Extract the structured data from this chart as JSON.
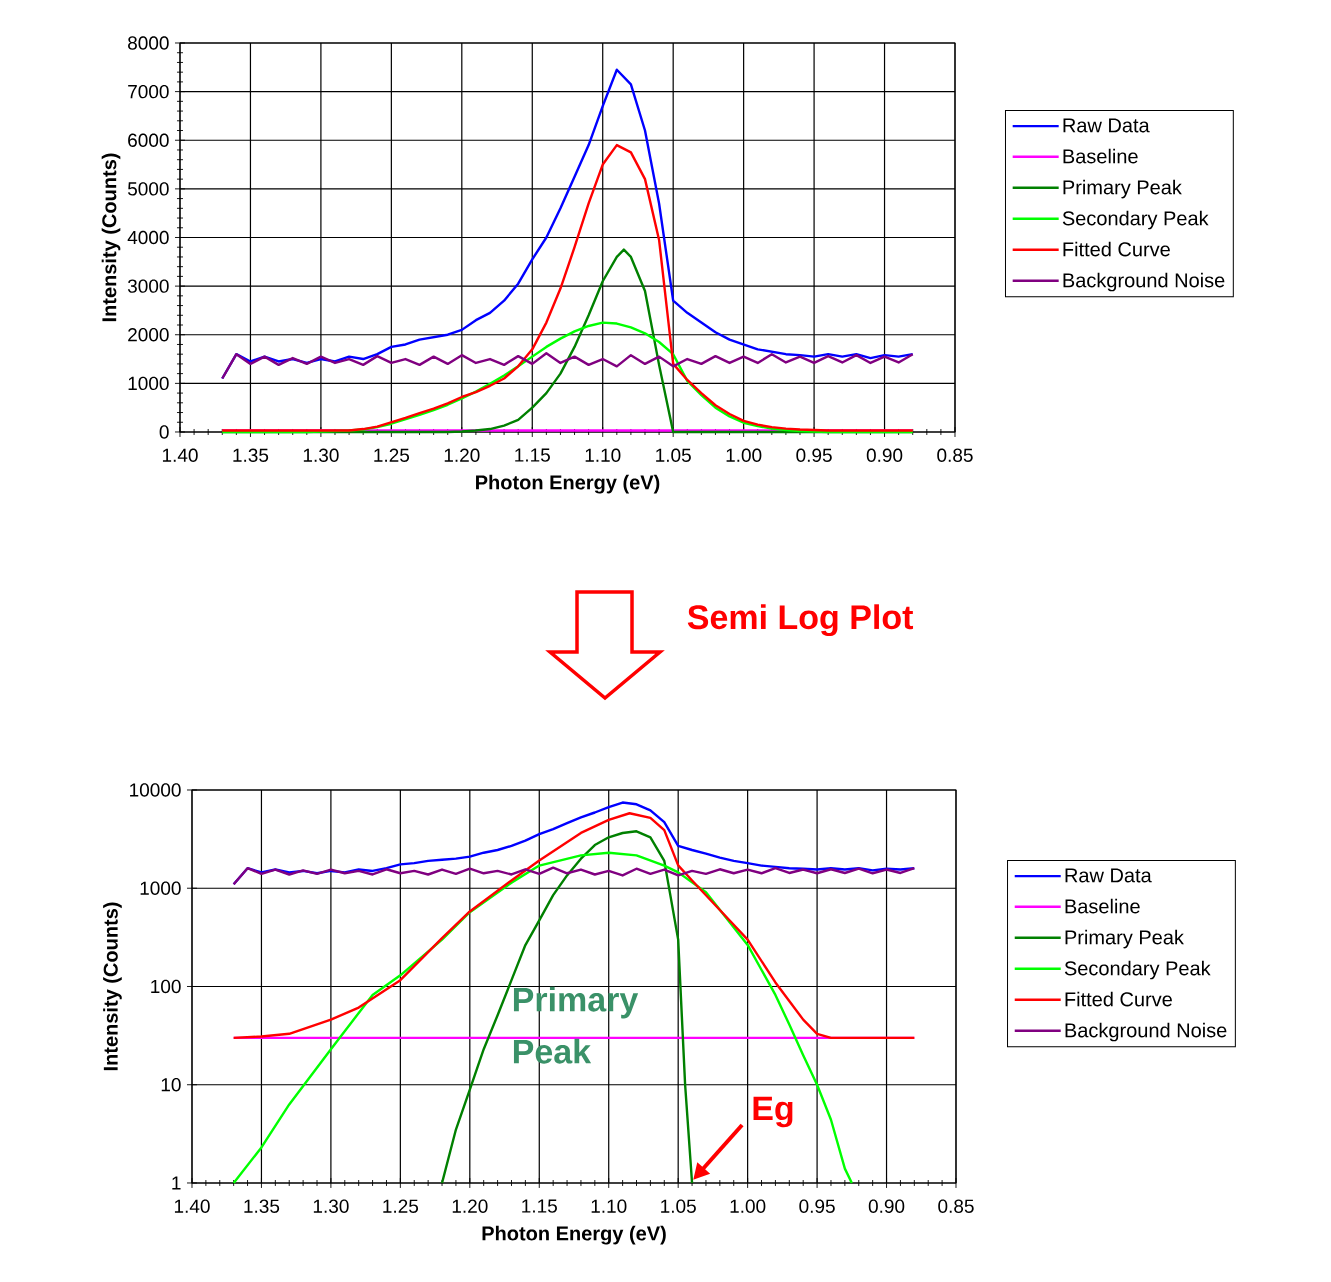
{
  "chart_data": [
    {
      "type": "line",
      "xlabel": "Photon Energy (eV)",
      "ylabel": "Intensity (Counts)",
      "x": [
        1.37,
        1.36,
        1.35,
        1.34,
        1.33,
        1.32,
        1.31,
        1.3,
        1.29,
        1.28,
        1.27,
        1.26,
        1.25,
        1.24,
        1.23,
        1.22,
        1.21,
        1.2,
        1.19,
        1.18,
        1.17,
        1.16,
        1.15,
        1.14,
        1.13,
        1.12,
        1.11,
        1.1,
        1.09,
        1.08,
        1.07,
        1.06,
        1.05,
        1.04,
        1.03,
        1.02,
        1.01,
        1.0,
        0.99,
        0.98,
        0.97,
        0.96,
        0.95,
        0.94,
        0.93,
        0.92,
        0.91,
        0.9,
        0.89,
        0.88
      ],
      "xlim": [
        1.4,
        0.85
      ],
      "ylim": [
        0,
        8000
      ],
      "xticks": [
        {
          "value": 1.4,
          "label": "1.40"
        },
        1.35,
        {
          "value": 1.3,
          "label": "1.30"
        },
        1.25,
        {
          "value": 1.2,
          "label": "1.20"
        },
        1.15,
        {
          "value": 1.1,
          "label": "1.10"
        },
        1.05,
        {
          "value": 1.0,
          "label": "1.00"
        },
        0.95,
        {
          "value": 0.9,
          "label": "0.90"
        },
        0.85
      ],
      "yticks": [
        0,
        1000,
        2000,
        3000,
        4000,
        5000,
        6000,
        7000,
        8000
      ],
      "grid": true,
      "legend": "right",
      "series": [
        {
          "name": "Raw Data",
          "color": "#0000ff",
          "values": [
            1100,
            1600,
            1450,
            1550,
            1450,
            1500,
            1420,
            1500,
            1450,
            1550,
            1500,
            1600,
            1750,
            1800,
            1900,
            1950,
            2000,
            2100,
            2300,
            2450,
            2700,
            3050,
            3550,
            4000,
            4600,
            5250,
            5900,
            6700,
            7450,
            7150,
            6200,
            4700,
            2700,
            2450,
            2250,
            2050,
            1900,
            1800,
            1700,
            1650,
            1600,
            1580,
            1550,
            1600,
            1550,
            1600,
            1520,
            1580,
            1550,
            1600
          ]
        },
        {
          "name": "Baseline",
          "color": "#ff00ff",
          "x": [
            1.37,
            0.88
          ],
          "values": [
            30,
            30
          ]
        },
        {
          "name": "Primary Peak",
          "color": "#008000",
          "x": [
            1.37,
            1.21,
            1.2,
            1.19,
            1.18,
            1.17,
            1.16,
            1.15,
            1.14,
            1.13,
            1.12,
            1.11,
            1.1,
            1.09,
            1.085,
            1.08,
            1.07,
            1.06,
            1.05,
            0.88
          ],
          "values": [
            0,
            0,
            10,
            30,
            60,
            130,
            250,
            500,
            800,
            1200,
            1750,
            2400,
            3100,
            3600,
            3750,
            3600,
            2900,
            1380,
            0,
            0
          ]
        },
        {
          "name": "Secondary Peak",
          "color": "#00ff00",
          "values": [
            0,
            0,
            0,
            0,
            0,
            0,
            0,
            10,
            20,
            30,
            50,
            100,
            170,
            260,
            350,
            450,
            560,
            690,
            830,
            990,
            1160,
            1350,
            1550,
            1750,
            1920,
            2070,
            2180,
            2250,
            2230,
            2150,
            2030,
            1850,
            1600,
            1050,
            760,
            500,
            320,
            190,
            120,
            70,
            40,
            20,
            10,
            0,
            0,
            0,
            0,
            0,
            0,
            0
          ]
        },
        {
          "name": "Fitted Curve",
          "color": "#ff0000",
          "values": [
            30,
            30,
            30,
            30,
            30,
            30,
            30,
            30,
            30,
            30,
            60,
            110,
            200,
            290,
            390,
            480,
            590,
            720,
            820,
            950,
            1100,
            1350,
            1700,
            2250,
            2950,
            3800,
            4700,
            5500,
            5900,
            5750,
            5200,
            3950,
            1400,
            1070,
            800,
            550,
            370,
            230,
            150,
            100,
            70,
            50,
            40,
            30,
            30,
            30,
            30,
            30,
            30,
            30
          ]
        },
        {
          "name": "Background Noise",
          "color": "#800080",
          "values": [
            1100,
            1600,
            1400,
            1550,
            1380,
            1520,
            1400,
            1550,
            1420,
            1500,
            1380,
            1560,
            1420,
            1500,
            1380,
            1550,
            1400,
            1580,
            1420,
            1500,
            1380,
            1560,
            1400,
            1620,
            1420,
            1550,
            1380,
            1500,
            1350,
            1580,
            1400,
            1550,
            1350,
            1500,
            1400,
            1560,
            1420,
            1550,
            1420,
            1600,
            1430,
            1550,
            1420,
            1560,
            1430,
            1580,
            1420,
            1550,
            1430,
            1600
          ]
        }
      ]
    },
    {
      "type": "line",
      "xlabel": "Photon Energy (eV)",
      "ylabel": "Intensity (Counts)",
      "x": [
        1.37,
        1.36,
        1.35,
        1.34,
        1.33,
        1.32,
        1.31,
        1.3,
        1.29,
        1.28,
        1.27,
        1.26,
        1.25,
        1.24,
        1.23,
        1.22,
        1.21,
        1.2,
        1.19,
        1.18,
        1.17,
        1.16,
        1.15,
        1.14,
        1.13,
        1.12,
        1.11,
        1.1,
        1.09,
        1.08,
        1.07,
        1.06,
        1.05,
        1.04,
        1.03,
        1.02,
        1.01,
        1.0,
        0.99,
        0.98,
        0.97,
        0.96,
        0.95,
        0.94,
        0.93,
        0.92,
        0.91,
        0.9,
        0.89,
        0.88
      ],
      "xlim": [
        1.4,
        0.85
      ],
      "ylim": [
        1,
        10000
      ],
      "log": true,
      "xticks": [
        {
          "value": 1.4,
          "label": "1.40"
        },
        1.35,
        {
          "value": 1.3,
          "label": "1.30"
        },
        1.25,
        {
          "value": 1.2,
          "label": "1.20"
        },
        1.15,
        {
          "value": 1.1,
          "label": "1.10"
        },
        1.05,
        {
          "value": 1.0,
          "label": "1.00"
        },
        0.95,
        {
          "value": 0.9,
          "label": "0.90"
        },
        0.85
      ],
      "yticks": [
        1,
        10,
        100,
        1000,
        10000
      ],
      "grid": true,
      "legend": "right",
      "annotations": [
        "Semi Log Plot",
        {
          "text": "Primary Peak",
          "x": 1.17,
          "y": 100
        },
        {
          "text": "Eg",
          "x": 1.04,
          "y": 1
        }
      ],
      "series": [
        {
          "name": "Raw Data",
          "color": "#0000ff",
          "values": [
            1100,
            1600,
            1450,
            1550,
            1450,
            1500,
            1420,
            1500,
            1450,
            1550,
            1500,
            1600,
            1750,
            1800,
            1900,
            1950,
            2000,
            2100,
            2300,
            2450,
            2700,
            3050,
            3550,
            4000,
            4600,
            5250,
            5900,
            6700,
            7450,
            7150,
            6200,
            4700,
            2700,
            2450,
            2250,
            2050,
            1900,
            1800,
            1700,
            1650,
            1600,
            1580,
            1550,
            1600,
            1550,
            1600,
            1520,
            1580,
            1550,
            1600
          ]
        },
        {
          "name": "Baseline",
          "color": "#ff00ff",
          "x": [
            1.37,
            0.88
          ],
          "values": [
            30,
            30
          ]
        },
        {
          "name": "Primary Peak",
          "color": "#008000",
          "x": [
            1.22,
            1.21,
            1.2,
            1.19,
            1.18,
            1.17,
            1.16,
            1.15,
            1.14,
            1.13,
            1.12,
            1.11,
            1.1,
            1.09,
            1.08,
            1.07,
            1.06,
            1.05,
            1.045,
            1.04
          ],
          "values": [
            1,
            3.5,
            8.9,
            23,
            51,
            116,
            264,
            470,
            850,
            1350,
            2000,
            2750,
            3300,
            3650,
            3800,
            3300,
            1900,
            300,
            10,
            1
          ]
        },
        {
          "name": "Secondary Peak",
          "color": "#00ff00",
          "x": [
            1.37,
            1.35,
            1.33,
            1.3,
            1.27,
            1.25,
            1.22,
            1.2,
            1.17,
            1.15,
            1.12,
            1.1,
            1.08,
            1.06,
            1.05,
            1.03,
            1.0,
            0.98,
            0.97,
            0.96,
            0.95,
            0.94,
            0.93,
            0.925
          ],
          "values": [
            1,
            2.3,
            6.3,
            23,
            82,
            130,
            300,
            570,
            1140,
            1700,
            2160,
            2300,
            2160,
            1700,
            1450,
            910,
            265,
            82,
            41,
            20,
            10,
            4.4,
            1.4,
            1
          ]
        },
        {
          "name": "Fitted Curve",
          "color": "#ff0000",
          "x": [
            1.37,
            1.35,
            1.33,
            1.3,
            1.28,
            1.25,
            1.22,
            1.2,
            1.17,
            1.15,
            1.12,
            1.1,
            1.085,
            1.07,
            1.06,
            1.05,
            1.04,
            1.02,
            1.0,
            0.98,
            0.96,
            0.95,
            0.94,
            0.88
          ],
          "values": [
            30,
            31,
            33,
            46,
            61,
            116,
            310,
            580,
            1200,
            1920,
            3660,
            4970,
            5800,
            5200,
            3900,
            1710,
            1200,
            600,
            300,
            110,
            46,
            33,
            30,
            30
          ]
        },
        {
          "name": "Background Noise",
          "color": "#800080",
          "values": [
            1100,
            1600,
            1400,
            1550,
            1380,
            1520,
            1400,
            1550,
            1420,
            1500,
            1380,
            1560,
            1420,
            1500,
            1380,
            1550,
            1400,
            1580,
            1420,
            1500,
            1380,
            1560,
            1400,
            1620,
            1420,
            1550,
            1380,
            1500,
            1350,
            1580,
            1400,
            1550,
            1350,
            1500,
            1400,
            1560,
            1420,
            1550,
            1420,
            1600,
            1430,
            1550,
            1420,
            1560,
            1430,
            1580,
            1420,
            1550,
            1430,
            1600
          ]
        }
      ]
    }
  ]
}
